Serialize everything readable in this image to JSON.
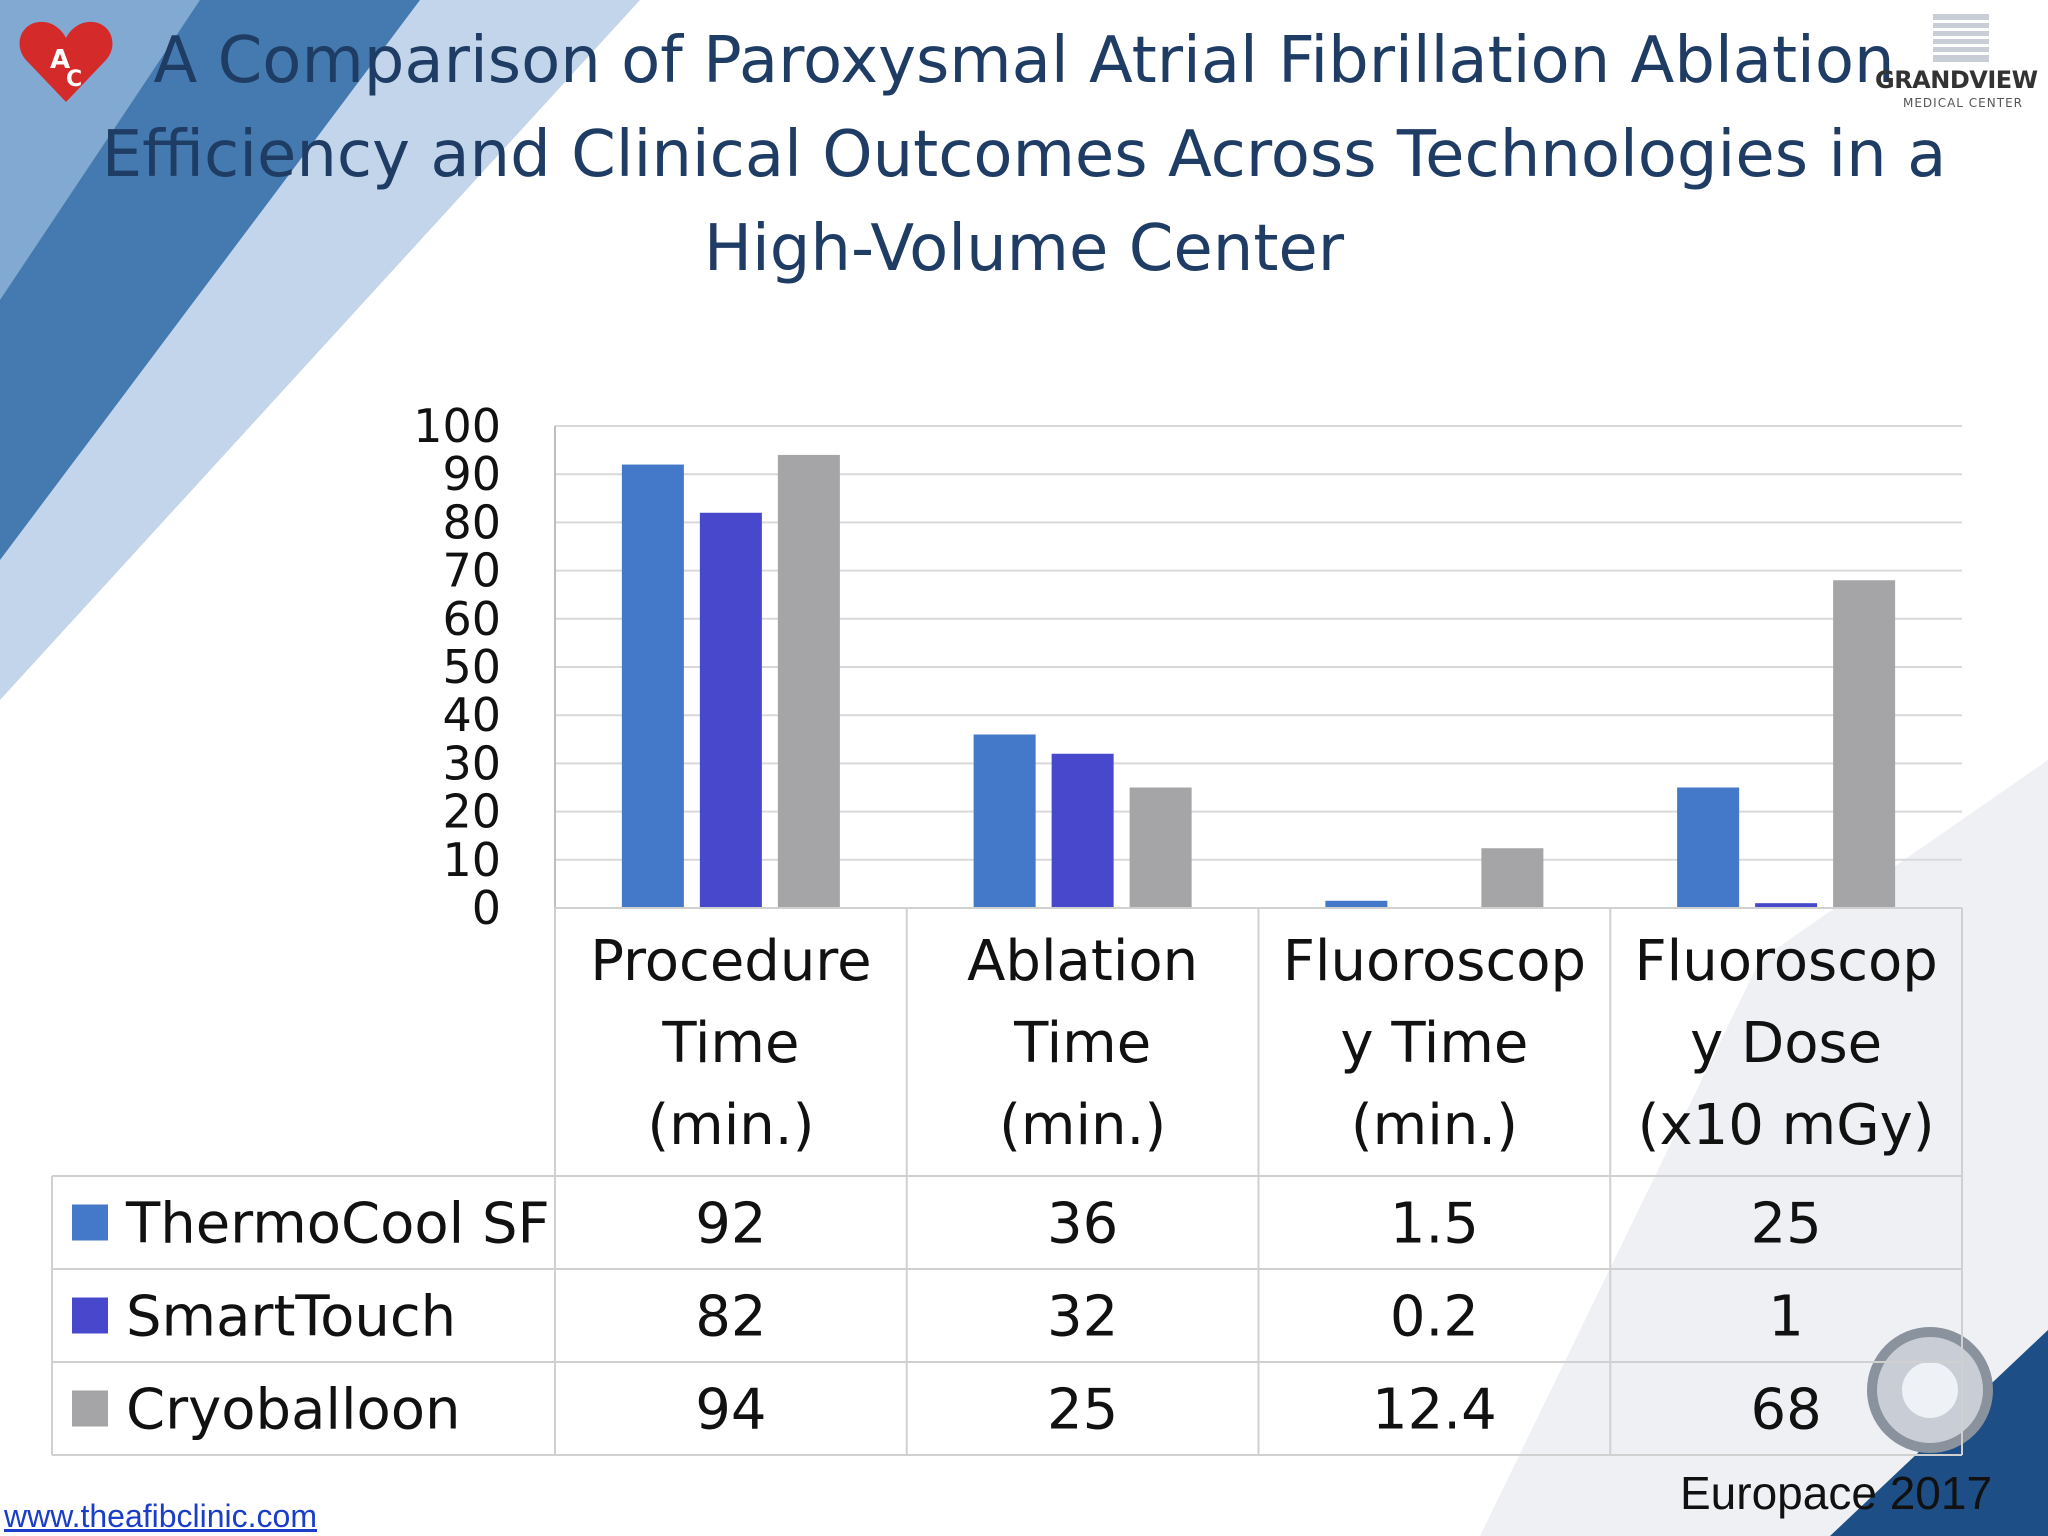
{
  "slide": {
    "title_lines": [
      "A Comparison of Paroxysmal Atrial Fibrillation Ablation",
      "Efficiency and Clinical Outcomes Across Technologies in a",
      "High-Volume Center"
    ],
    "brand": {
      "name": "GRANDVIEW",
      "sub": "MEDICAL CENTER"
    },
    "footer_link": "www.theafibclinic.com",
    "citation": "Europace 2017"
  },
  "chart_data": {
    "type": "bar",
    "categories": [
      [
        "Procedure",
        "Time",
        "(min.)"
      ],
      [
        "Ablation",
        "Time",
        "(min.)"
      ],
      [
        "Fluoroscop",
        "y Time",
        "(min.)"
      ],
      [
        "Fluoroscop",
        "y Dose",
        "(x10 mGy)"
      ]
    ],
    "series": [
      {
        "name": "ThermoCool SF",
        "values": [
          92,
          36,
          1.5,
          25
        ],
        "labels": [
          "92",
          "36",
          "1.5",
          "25"
        ],
        "color": "#4478c8"
      },
      {
        "name": "SmartTouch",
        "values": [
          82,
          32,
          0.2,
          1
        ],
        "labels": [
          "82",
          "32",
          "0.2",
          "1"
        ],
        "color": "#4848cc"
      },
      {
        "name": "Cryoballoon",
        "values": [
          94,
          25,
          12.4,
          68
        ],
        "labels": [
          "94",
          "25",
          "12.4",
          "68"
        ],
        "color": "#a5a5a8"
      }
    ],
    "yticks": [
      "0",
      "10",
      "20",
      "30",
      "40",
      "50",
      "60",
      "70",
      "80",
      "90",
      "100"
    ],
    "ylim": [
      0,
      100
    ],
    "grid": true,
    "legend": "data table"
  }
}
